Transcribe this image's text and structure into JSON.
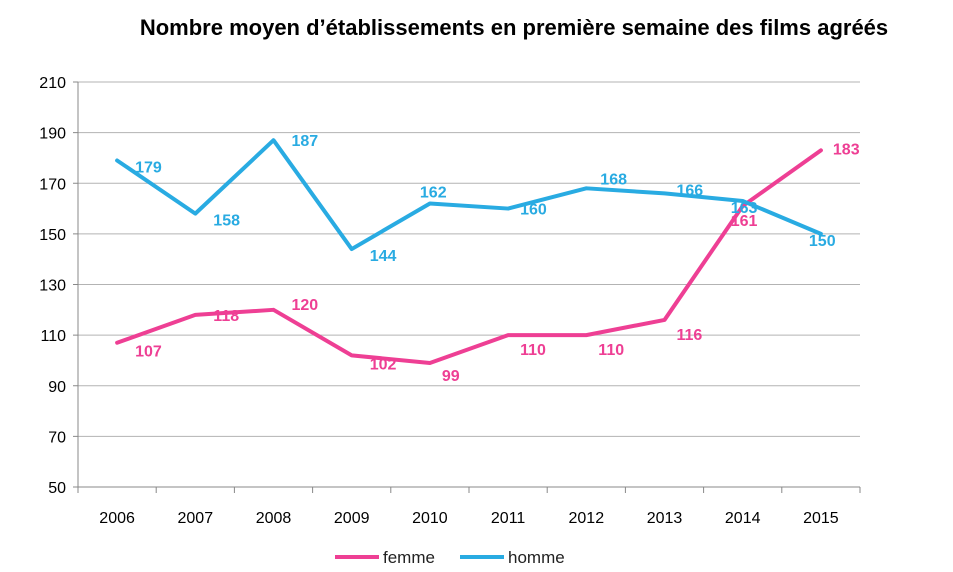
{
  "chart_data": {
    "type": "line",
    "title": "Nombre moyen d’établissements en première semaine des films agréés",
    "xlabel": "",
    "ylabel": "",
    "categories": [
      "2006",
      "2007",
      "2008",
      "2009",
      "2010",
      "2011",
      "2012",
      "2013",
      "2014",
      "2015"
    ],
    "ylim": [
      50,
      210
    ],
    "yticks": [
      50,
      70,
      90,
      110,
      130,
      150,
      170,
      190,
      210
    ],
    "grid": true,
    "legend_position": "bottom",
    "series": [
      {
        "name": "femme",
        "color": "#ee3f94",
        "values": [
          107,
          118,
          120,
          102,
          99,
          110,
          110,
          116,
          161,
          183
        ]
      },
      {
        "name": "homme",
        "color": "#29abe2",
        "values": [
          179,
          158,
          187,
          144,
          162,
          160,
          168,
          166,
          163,
          150
        ]
      }
    ]
  }
}
